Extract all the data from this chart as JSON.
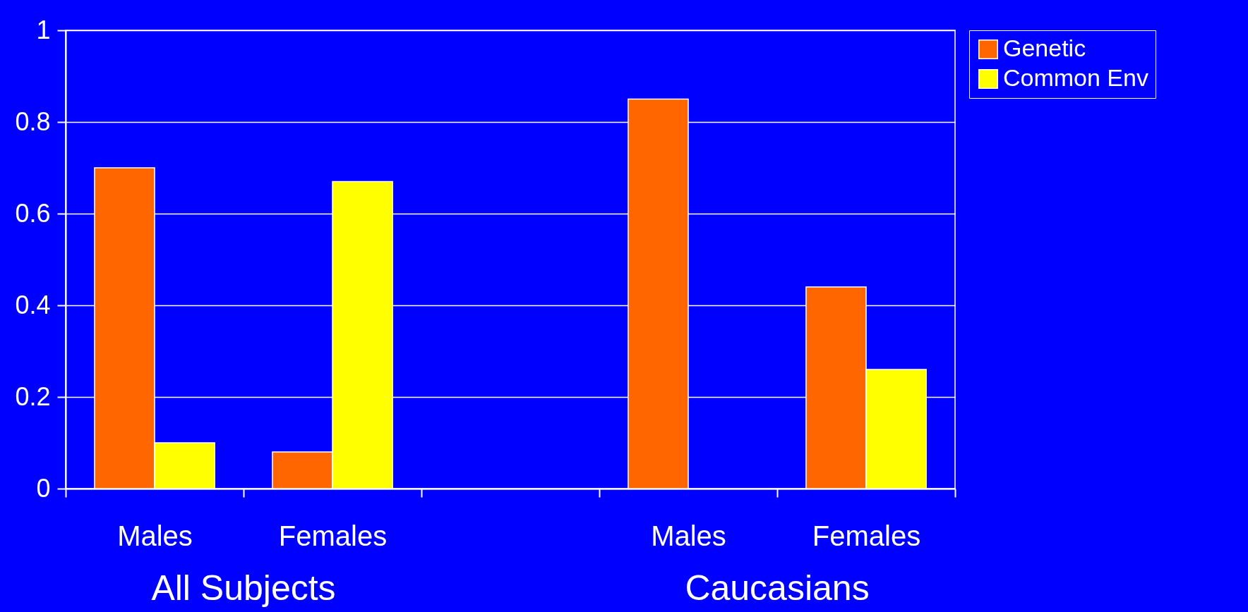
{
  "chart_data": {
    "type": "bar",
    "categories": [
      "Males",
      "Females",
      null,
      "Males",
      "Females"
    ],
    "series": [
      {
        "name": "Genetic",
        "color": "#ff6600",
        "values": [
          0.7,
          0.08,
          null,
          0.85,
          0.44
        ]
      },
      {
        "name": "Common Env",
        "color": "#ffff00",
        "values": [
          0.1,
          0.67,
          null,
          null,
          0.26
        ]
      }
    ],
    "ylim": [
      0,
      1
    ],
    "yticks": [
      0,
      0.2,
      0.4,
      0.6,
      0.8,
      1
    ],
    "grid": "y",
    "legend": "right",
    "annotations": [
      "All Subjects",
      "Caucasians"
    ]
  }
}
